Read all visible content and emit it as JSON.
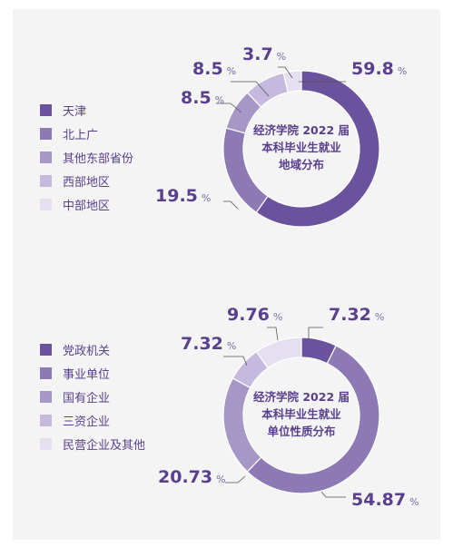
{
  "chart_data": [
    {
      "type": "pie",
      "title": "经济学院 2022 届本科毕业生就业地域分布",
      "title_lines": [
        "经济学院 2022 届",
        "本科毕业生就业",
        "地域分布"
      ],
      "categories": [
        "天津",
        "北上广",
        "其他东部省份",
        "西部地区",
        "中部地区"
      ],
      "values": [
        59.8,
        19.5,
        8.5,
        8.5,
        3.7
      ],
      "value_labels": [
        "59.8",
        "19.5",
        "8.5",
        "8.5",
        "3.7"
      ],
      "unit": "%",
      "colors": [
        "#6a529c",
        "#8d7ab5",
        "#a697c6",
        "#c5b9dd",
        "#e5dff0"
      ],
      "legend": "left"
    },
    {
      "type": "pie",
      "title": "经济学院 2022 届本科毕业生就业单位性质分布",
      "title_lines": [
        "经济学院 2022 届",
        "本科毕业生就业",
        "单位性质分布"
      ],
      "categories": [
        "党政机关",
        "事业单位",
        "国有企业",
        "三资企业",
        "民营企业及其他"
      ],
      "values": [
        7.32,
        54.87,
        20.73,
        7.32,
        9.76
      ],
      "value_labels": [
        "7.32",
        "54.87",
        "20.73",
        "7.32",
        "9.76"
      ],
      "unit": "%",
      "colors": [
        "#6a529c",
        "#8d7ab5",
        "#a697c6",
        "#c5b9dd",
        "#e5dff0"
      ],
      "legend": "left"
    }
  ]
}
